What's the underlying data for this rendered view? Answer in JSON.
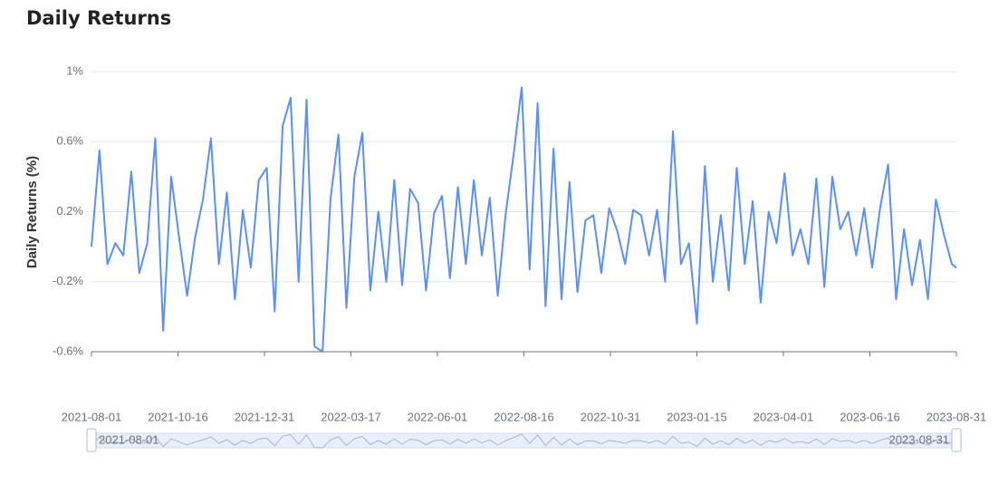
{
  "chart_data": {
    "type": "line",
    "title": "Daily Returns",
    "y_label": "Daily Returns (%)",
    "grid": true,
    "xlim": [
      "2021-08-01",
      "2023-08-31"
    ],
    "xticks": [
      "2021-08-01",
      "2021-10-16",
      "2021-12-31",
      "2022-03-17",
      "2022-06-01",
      "2022-08-16",
      "2022-10-31",
      "2023-01-15",
      "2023-04-01",
      "2023-06-16",
      "2023-08-31"
    ],
    "ylim": [
      -0.6,
      1
    ],
    "yticks": [
      {
        "value": -0.6,
        "label": "-0.6%"
      },
      {
        "value": -0.2,
        "label": "-0.2%"
      },
      {
        "value": 0.2,
        "label": "0.2%"
      },
      {
        "value": 0.6,
        "label": "0.6%"
      },
      {
        "value": 1,
        "label": "1%"
      }
    ],
    "x": [
      "2021-08-01",
      "2021-08-08",
      "2021-08-15",
      "2021-08-22",
      "2021-08-29",
      "2021-09-05",
      "2021-09-12",
      "2021-09-19",
      "2021-09-26",
      "2021-10-03",
      "2021-10-10",
      "2021-10-17",
      "2021-10-24",
      "2021-10-31",
      "2021-11-07",
      "2021-11-14",
      "2021-11-21",
      "2021-11-28",
      "2021-12-05",
      "2021-12-12",
      "2021-12-19",
      "2021-12-26",
      "2022-01-02",
      "2022-01-09",
      "2022-01-16",
      "2022-01-23",
      "2022-01-30",
      "2022-02-06",
      "2022-02-13",
      "2022-02-20",
      "2022-02-27",
      "2022-03-06",
      "2022-03-13",
      "2022-03-20",
      "2022-03-27",
      "2022-04-03",
      "2022-04-10",
      "2022-04-17",
      "2022-04-24",
      "2022-05-01",
      "2022-05-08",
      "2022-05-15",
      "2022-05-22",
      "2022-05-29",
      "2022-06-05",
      "2022-06-12",
      "2022-06-19",
      "2022-06-26",
      "2022-07-03",
      "2022-07-10",
      "2022-07-17",
      "2022-07-24",
      "2022-07-31",
      "2022-08-07",
      "2022-08-14",
      "2022-08-21",
      "2022-08-28",
      "2022-09-04",
      "2022-09-11",
      "2022-09-18",
      "2022-09-25",
      "2022-10-02",
      "2022-10-09",
      "2022-10-16",
      "2022-10-23",
      "2022-10-30",
      "2022-11-06",
      "2022-11-13",
      "2022-11-20",
      "2022-11-27",
      "2022-12-04",
      "2022-12-11",
      "2022-12-18",
      "2022-12-25",
      "2023-01-01",
      "2023-01-08",
      "2023-01-15",
      "2023-01-22",
      "2023-01-29",
      "2023-02-05",
      "2023-02-12",
      "2023-02-19",
      "2023-02-26",
      "2023-03-05",
      "2023-03-12",
      "2023-03-19",
      "2023-03-26",
      "2023-04-02",
      "2023-04-09",
      "2023-04-16",
      "2023-04-23",
      "2023-04-30",
      "2023-05-07",
      "2023-05-14",
      "2023-05-21",
      "2023-05-28",
      "2023-06-04",
      "2023-06-11",
      "2023-06-18",
      "2023-06-25",
      "2023-07-02",
      "2023-07-09",
      "2023-07-16",
      "2023-07-23",
      "2023-07-30",
      "2023-08-06",
      "2023-08-13",
      "2023-08-20",
      "2023-08-27",
      "2023-08-31"
    ],
    "series": [
      {
        "name": "Daily Returns",
        "color": "#5b8ff9",
        "values": [
          0,
          0.55,
          -0.1,
          0.02,
          -0.05,
          0.43,
          -0.15,
          0.02,
          0.62,
          -0.48,
          0.4,
          0.05,
          -0.28,
          0.05,
          0.27,
          0.62,
          -0.1,
          0.31,
          -0.3,
          0.21,
          -0.12,
          0.38,
          0.45,
          -0.37,
          0.69,
          0.85,
          -0.2,
          0.84,
          -0.57,
          -0.6,
          0.27,
          0.64,
          -0.35,
          0.4,
          0.65,
          -0.25,
          0.2,
          -0.2,
          0.38,
          -0.22,
          0.33,
          0.25,
          -0.25,
          0.19,
          0.29,
          -0.18,
          0.34,
          -0.1,
          0.38,
          -0.05,
          0.28,
          -0.28,
          0.19,
          0.53,
          0.91,
          -0.13,
          0.82,
          -0.34,
          0.56,
          -0.3,
          0.37,
          -0.26,
          0.15,
          0.18,
          -0.15,
          0.22,
          0.09,
          -0.1,
          0.21,
          0.18,
          -0.05,
          0.21,
          -0.2,
          0.66,
          -0.1,
          0.02,
          -0.44,
          0.46,
          -0.2,
          0.18,
          -0.25,
          0.45,
          -0.1,
          0.26,
          -0.32,
          0.2,
          0.02,
          0.42,
          -0.05,
          0.1,
          -0.1,
          0.39,
          -0.23,
          0.4,
          0.1,
          0.2,
          -0.05,
          0.22,
          -0.12,
          0.22,
          0.47,
          -0.3,
          0.1,
          -0.22,
          0.04,
          -0.3,
          0.27,
          0.07,
          -0.1,
          -0.12
        ]
      }
    ]
  }
}
